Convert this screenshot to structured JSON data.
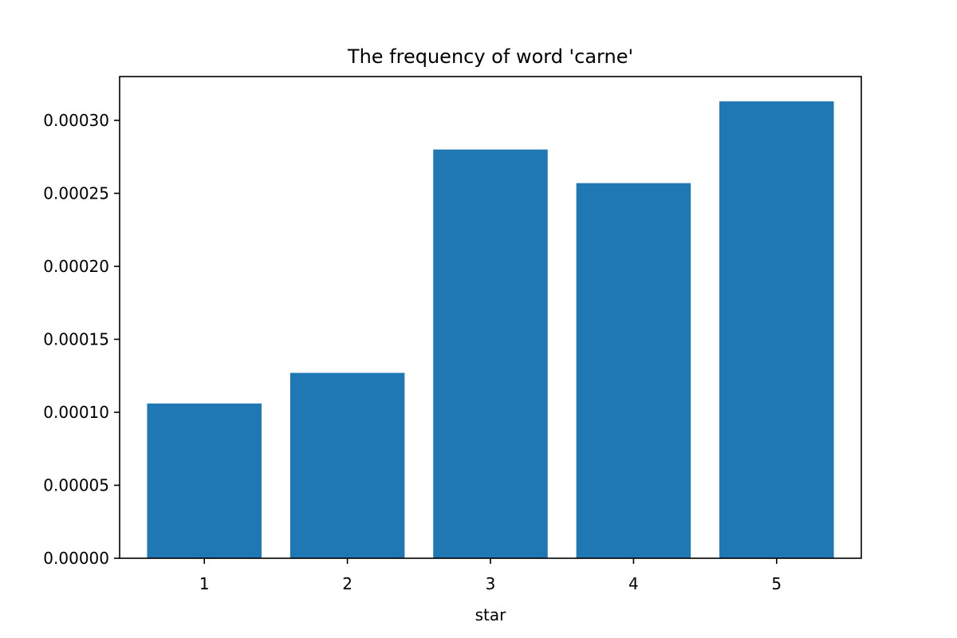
{
  "chart_data": {
    "type": "bar",
    "title": "The frequency of word 'carne'",
    "xlabel": "star",
    "ylabel": "",
    "categories": [
      "1",
      "2",
      "3",
      "4",
      "5"
    ],
    "values": [
      0.000106,
      0.000127,
      0.00028,
      0.000257,
      0.000313
    ],
    "ylim": [
      0,
      0.00033
    ],
    "yticks": [
      "0.00000",
      "0.00005",
      "0.00010",
      "0.00015",
      "0.00020",
      "0.00025",
      "0.00030"
    ],
    "ytick_values": [
      0,
      5e-05,
      0.0001,
      0.00015,
      0.0002,
      0.00025,
      0.0003
    ],
    "grid": false,
    "legend": "none",
    "bar_color": "#1f77b4"
  }
}
